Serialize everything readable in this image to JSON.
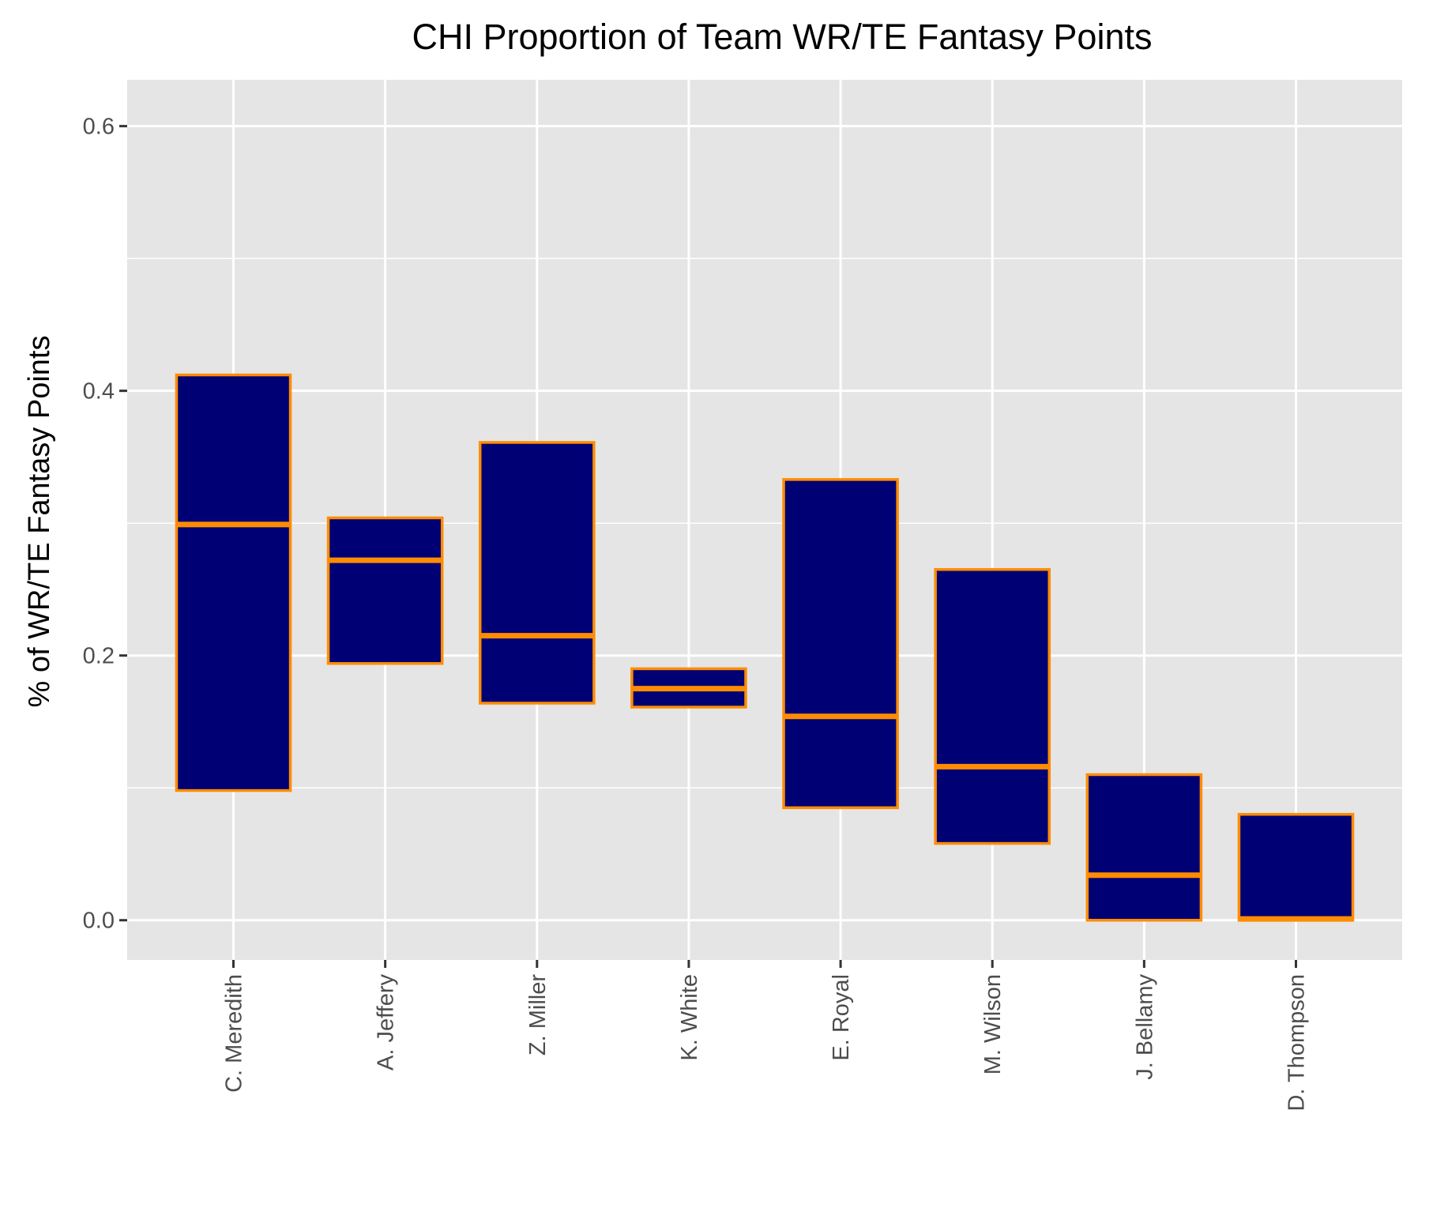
{
  "chart_data": {
    "type": "boxplot",
    "title": "CHI Proportion of Team WR/TE Fantasy Points",
    "xlabel": "",
    "ylabel": "% of WR/TE Fantasy Points",
    "ylim": [
      -0.03,
      0.635
    ],
    "yticks": [
      "0.0",
      "0.2",
      "0.4",
      "0.6"
    ],
    "ytick_values": [
      0.0,
      0.2,
      0.4,
      0.6
    ],
    "grid": true,
    "categories": [
      "C. Meredith",
      "A. Jeffery",
      "Z. Miller",
      "K. White",
      "E. Royal",
      "M. Wilson",
      "J. Bellamy",
      "D. Thompson"
    ],
    "series": [
      {
        "low": [
          0.098,
          0.194,
          0.164,
          0.161,
          0.085,
          0.058,
          0.0,
          0.0
        ],
        "median": [
          0.299,
          0.272,
          0.215,
          0.175,
          0.154,
          0.116,
          0.034,
          0.001
        ],
        "high": [
          0.412,
          0.304,
          0.361,
          0.19,
          0.333,
          0.265,
          0.11,
          0.08
        ]
      }
    ],
    "colors": {
      "fill": "#000075",
      "outline": "#FF8C00",
      "panel": "#E5E5E5",
      "grid": "#FFFFFF",
      "tick_text": "#4D4D4D"
    }
  }
}
